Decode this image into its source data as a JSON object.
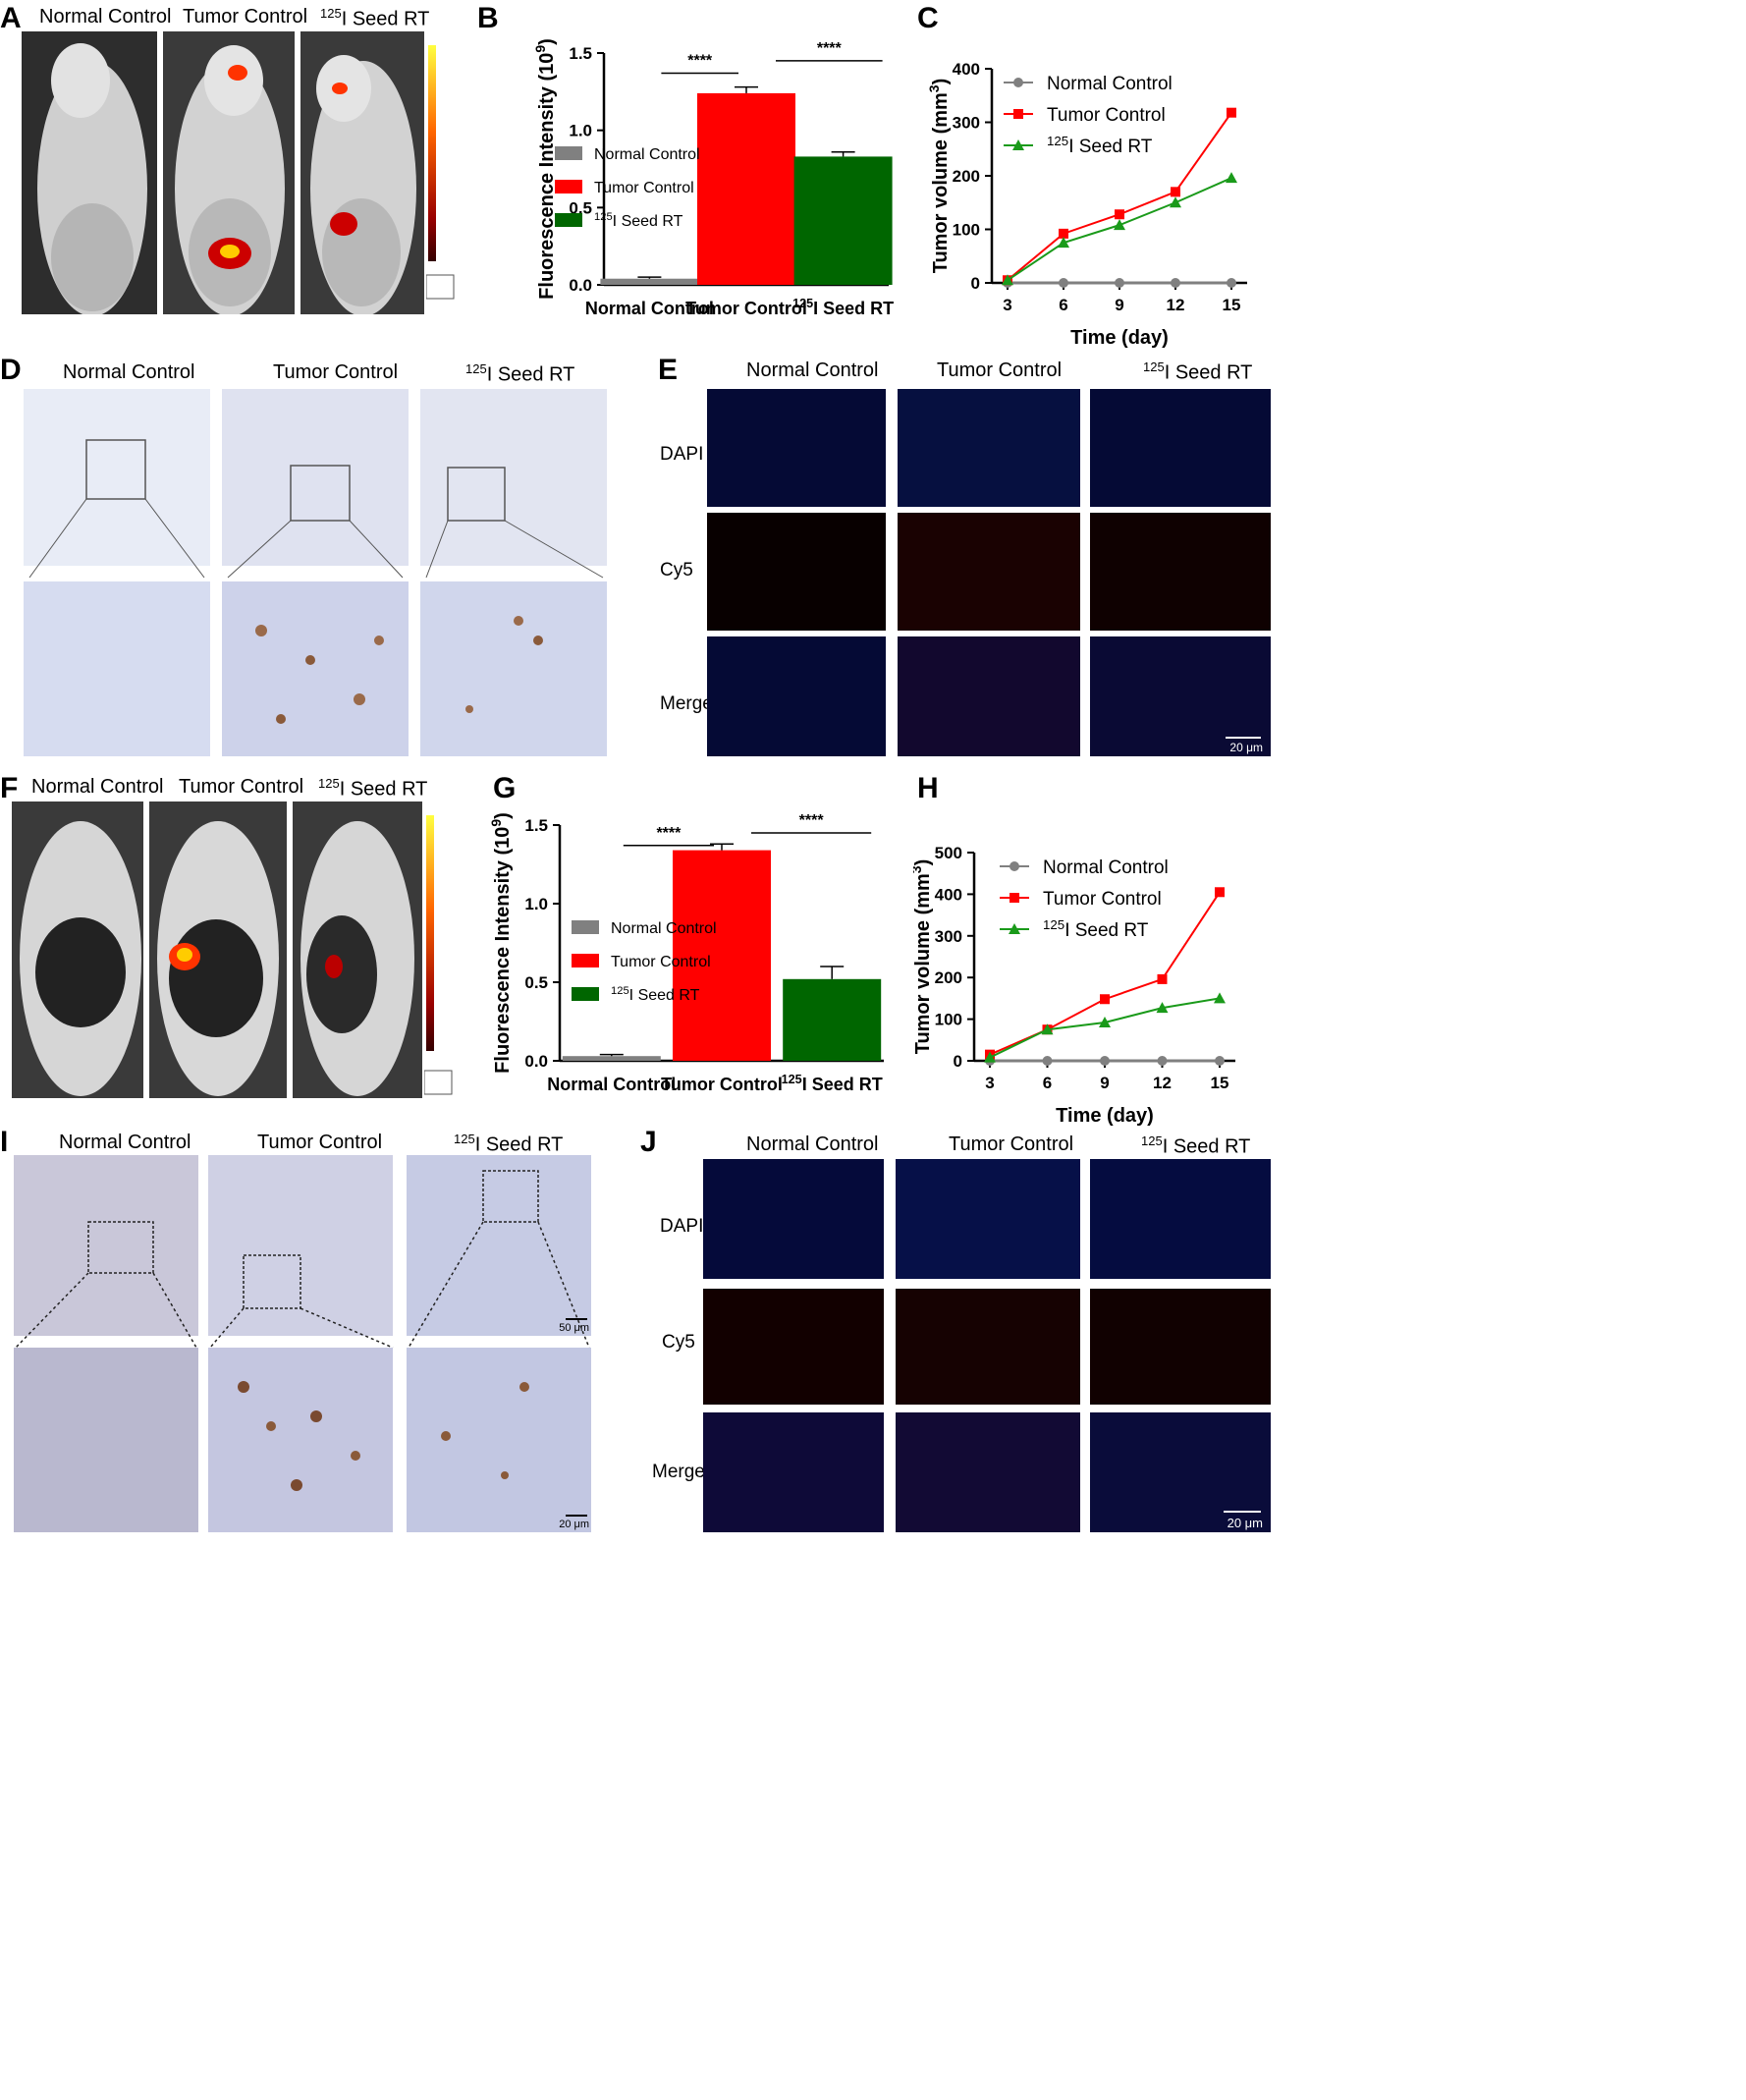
{
  "panel_letters": {
    "A": "A",
    "B": "B",
    "C": "C",
    "D": "D",
    "E": "E",
    "F": "F",
    "G": "G",
    "H": "H",
    "I": "I",
    "J": "J"
  },
  "groups": {
    "normal": "Normal Control",
    "tumor": "Tumor Control",
    "seed_sup": "125",
    "seed_rest": "I Seed RT"
  },
  "fluor_rows": {
    "dapi": "DAPI",
    "cy5": "Cy5",
    "merge": "Merge"
  },
  "scale_bars": {
    "e": "20 μm",
    "i_top": "50 μm",
    "i_bottom": "20 μm",
    "j": "20 μm"
  },
  "colors": {
    "normal": "#808080",
    "tumor": "#ff0000",
    "seed": "#006600",
    "seed_line": "#1a9a1a"
  },
  "chart_data": [
    {
      "id": "B",
      "type": "bar",
      "categories": [
        "Normal Control",
        "Tumor Control",
        "125I Seed RT"
      ],
      "values": [
        0.04,
        1.24,
        0.83
      ],
      "errors": [
        0.01,
        0.04,
        0.03
      ],
      "ylabel": "Fluorescence Intensity (10^9)",
      "ylim": [
        0,
        1.5
      ],
      "yticks": [
        "0.0",
        "0.5",
        "1.0",
        "1.5"
      ],
      "significance": [
        "****",
        "****"
      ],
      "legend": [
        "Normal Control",
        "Tumor Control",
        "125I Seed RT"
      ],
      "legend_position": "left"
    },
    {
      "id": "C",
      "type": "line",
      "x": [
        3,
        6,
        9,
        12,
        15
      ],
      "series": [
        {
          "name": "Normal Control",
          "values": [
            0,
            0,
            0,
            0,
            0
          ]
        },
        {
          "name": "Tumor Control",
          "values": [
            5,
            92,
            128,
            170,
            318
          ]
        },
        {
          "name": "125I Seed RT",
          "values": [
            5,
            75,
            108,
            150,
            196
          ]
        }
      ],
      "xlabel": "Time (day)",
      "ylabel": "Tumor volume (mm3)",
      "ylim": [
        0,
        400
      ],
      "yticks": [
        "0",
        "100",
        "200",
        "300",
        "400"
      ],
      "legend_position": "top-left"
    },
    {
      "id": "G",
      "type": "bar",
      "categories": [
        "Normal Control",
        "Tumor Control",
        "125I Seed RT"
      ],
      "values": [
        0.03,
        1.34,
        0.52
      ],
      "errors": [
        0.01,
        0.04,
        0.08
      ],
      "ylabel": "Fluorescence Intensity (10^9)",
      "ylim": [
        0,
        1.5
      ],
      "yticks": [
        "0.0",
        "0.5",
        "1.0",
        "1.5"
      ],
      "significance": [
        "****",
        "****"
      ],
      "legend": [
        "Normal Control",
        "Tumor Control",
        "125I Seed RT"
      ],
      "legend_position": "left"
    },
    {
      "id": "H",
      "type": "line",
      "x": [
        3,
        6,
        9,
        12,
        15
      ],
      "series": [
        {
          "name": "Normal Control",
          "values": [
            0,
            0,
            0,
            0,
            0
          ]
        },
        {
          "name": "Tumor Control",
          "values": [
            15,
            75,
            148,
            196,
            405
          ]
        },
        {
          "name": "125I Seed RT",
          "values": [
            8,
            75,
            92,
            127,
            150
          ]
        }
      ],
      "xlabel": "Time (day)",
      "ylabel": "Tumor volume (mm3)",
      "ylim": [
        0,
        500
      ],
      "yticks": [
        "0",
        "100",
        "200",
        "300",
        "400",
        "500"
      ],
      "legend_position": "top-left"
    }
  ]
}
